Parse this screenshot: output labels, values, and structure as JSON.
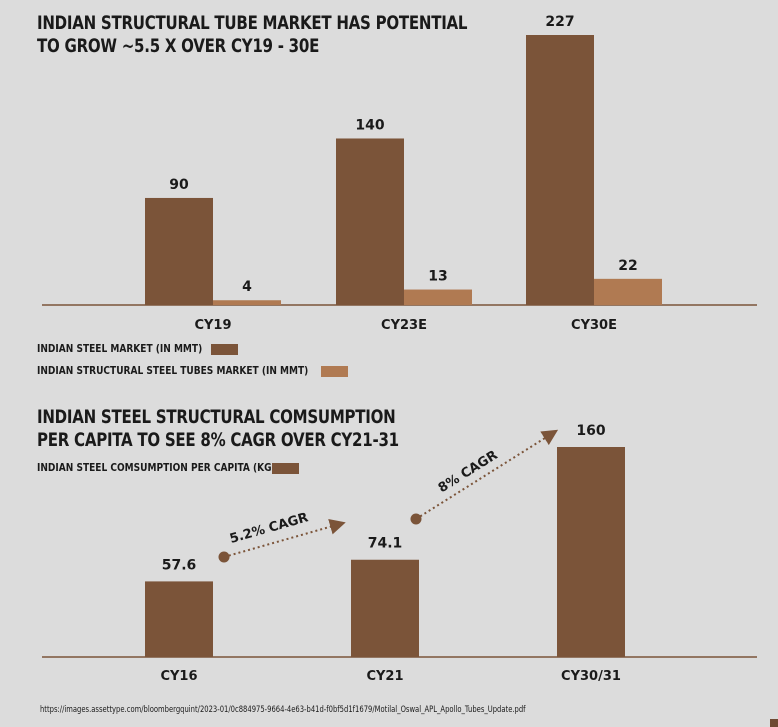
{
  "colors": {
    "steel": "#7b5439",
    "tubes": "#b07a52",
    "axis": "#7b5439",
    "arrow": "#7b5439",
    "background": "#dcdcdc"
  },
  "chart_data": [
    {
      "type": "bar",
      "title_line1": "INDIAN STRUCTURAL TUBE MARKET HAS POTENTIAL",
      "title_line2": "TO GROW ~5.5 X OVER CY19 - 30E",
      "categories": [
        "CY19",
        "CY23E",
        "CY30E"
      ],
      "series": [
        {
          "name": "INDIAN STEEL MARKET (IN MMT)",
          "values": [
            90,
            140,
            227
          ]
        },
        {
          "name": "INDIAN STRUCTURAL STEEL TUBES MARKET (IN MMT)",
          "values": [
            4,
            13,
            22
          ]
        }
      ],
      "ylim": [
        0,
        227
      ]
    },
    {
      "type": "bar",
      "title_line1": "INDIAN STEEL STRUCTURAL COMSUMPTION",
      "title_line2": "PER CAPITA TO SEE 8% CAGR OVER CY21-31",
      "categories": [
        "CY16",
        "CY21",
        "CY30/31"
      ],
      "series": [
        {
          "name": "INDIAN STEEL COMSUMPTION PER CAPITA (KG)",
          "values": [
            57.6,
            74.1,
            160
          ]
        }
      ],
      "value_labels": [
        "57.6",
        "74.1",
        "160"
      ],
      "annotations": [
        {
          "text": "5.2% CAGR",
          "from": 0,
          "to": 1
        },
        {
          "text": "8% CAGR",
          "from": 1,
          "to": 2
        }
      ],
      "ylim": [
        0,
        160
      ]
    }
  ],
  "source": "https://images.assettype.com/bloombergquint/2023-01/0c884975-9664-4e63-b41d-f0bf5d1f1679/Motilal_Oswal_APL_Apollo_Tubes_Update.pdf"
}
